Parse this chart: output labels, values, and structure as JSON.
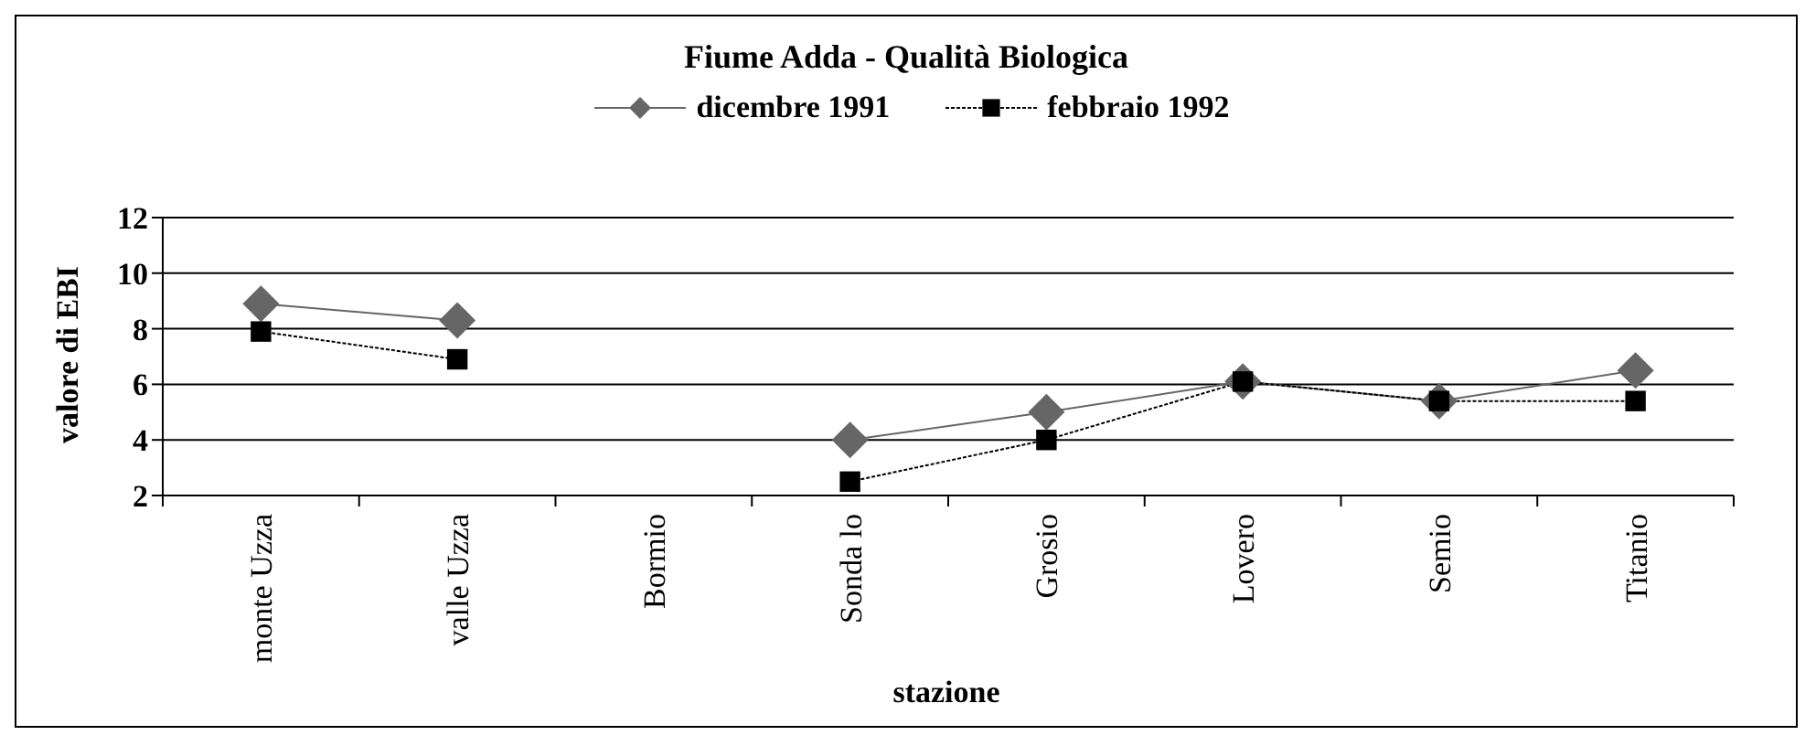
{
  "chart_data": {
    "type": "line",
    "title": "Fiume Adda - Qualità Biologica",
    "xlabel": "stazione",
    "ylabel": "valore di EBI",
    "categories": [
      "monte Uzza",
      "valle Uzza",
      "Bormio",
      "Sonda lo",
      "Grosio",
      "Lovero",
      "Semio",
      "Titanio"
    ],
    "series": [
      {
        "name": "dicembre 1991",
        "color": "#666666",
        "marker": "diamond",
        "line_style": "solid",
        "values": [
          8.9,
          8.3,
          null,
          4,
          5,
          6.1,
          5.4,
          6.5
        ]
      },
      {
        "name": "febbraio 1992",
        "color": "#000000",
        "marker": "square",
        "line_style": "dotted",
        "values": [
          7.9,
          6.9,
          null,
          2.5,
          4,
          6.1,
          5.4,
          5.4
        ]
      }
    ],
    "ylim": [
      2,
      12
    ],
    "yticks": [
      2,
      4,
      6,
      8,
      10,
      12
    ],
    "grid": "y",
    "legend": "top"
  }
}
